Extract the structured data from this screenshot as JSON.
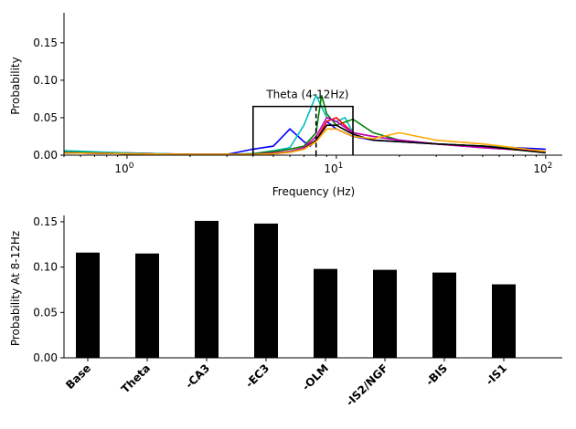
{
  "chart_data": [
    {
      "type": "line",
      "xlabel": "Frequency (Hz)",
      "ylabel": "Probability",
      "xscale": "log",
      "xlim": [
        0.5,
        120
      ],
      "ylim": [
        0,
        0.19
      ],
      "xtick_labels": [
        "10^0",
        "10^1",
        "10^2"
      ],
      "ytick_labels": [
        "0.00",
        "0.05",
        "0.10",
        "0.15"
      ],
      "annotation": {
        "text": "Theta (4-12Hz)",
        "band_hz": [
          4,
          12
        ],
        "box_top": 0.065,
        "dashed_line_hz": 8
      },
      "series": [
        {
          "color": "#0000ff",
          "x": [
            0.5,
            1,
            2,
            3,
            4,
            5,
            6,
            7,
            7.5,
            8,
            9,
            10,
            12,
            15,
            20,
            30,
            50,
            100
          ],
          "y": [
            0.005,
            0.003,
            0.001,
            0.001,
            0.008,
            0.012,
            0.035,
            0.018,
            0.012,
            0.02,
            0.045,
            0.035,
            0.025,
            0.02,
            0.018,
            0.015,
            0.012,
            0.008
          ]
        },
        {
          "color": "#00bfbf",
          "x": [
            0.5,
            1,
            2,
            3,
            4,
            5,
            6,
            7,
            8,
            9,
            10,
            11,
            12,
            15,
            20,
            30,
            50,
            100
          ],
          "y": [
            0.006,
            0.003,
            0.001,
            0.001,
            0.002,
            0.006,
            0.01,
            0.04,
            0.08,
            0.05,
            0.045,
            0.05,
            0.03,
            0.025,
            0.02,
            0.015,
            0.012,
            0.005
          ]
        },
        {
          "color": "#008000",
          "x": [
            0.5,
            1,
            2,
            3,
            4,
            5,
            6,
            7,
            8,
            8.5,
            9,
            10,
            12,
            15,
            20,
            30,
            50,
            100
          ],
          "y": [
            0.004,
            0.002,
            0.001,
            0.001,
            0.002,
            0.005,
            0.008,
            0.012,
            0.03,
            0.08,
            0.055,
            0.04,
            0.048,
            0.03,
            0.02,
            0.015,
            0.012,
            0.005
          ]
        },
        {
          "color": "#ff0000",
          "x": [
            0.5,
            1,
            2,
            3,
            4,
            5,
            6,
            7,
            8,
            9,
            10,
            12,
            15,
            20,
            30,
            50,
            100
          ],
          "y": [
            0.003,
            0.002,
            0.001,
            0.001,
            0.001,
            0.003,
            0.005,
            0.01,
            0.02,
            0.045,
            0.05,
            0.03,
            0.025,
            0.02,
            0.015,
            0.01,
            0.005
          ]
        },
        {
          "color": "#bf00bf",
          "x": [
            0.5,
            1,
            2,
            3,
            4,
            5,
            6,
            7,
            8,
            9,
            10,
            12,
            15,
            20,
            30,
            50,
            100
          ],
          "y": [
            0.003,
            0.002,
            0.001,
            0.001,
            0.001,
            0.003,
            0.005,
            0.01,
            0.025,
            0.05,
            0.045,
            0.03,
            0.025,
            0.02,
            0.015,
            0.01,
            0.005
          ]
        },
        {
          "color": "#000000",
          "x": [
            0.5,
            1,
            2,
            3,
            4,
            5,
            6,
            7,
            8,
            9,
            10,
            12,
            15,
            20,
            30,
            50,
            100
          ],
          "y": [
            0.003,
            0.002,
            0.001,
            0.001,
            0.001,
            0.002,
            0.004,
            0.008,
            0.02,
            0.04,
            0.04,
            0.028,
            0.02,
            0.018,
            0.015,
            0.012,
            0.003
          ]
        },
        {
          "color": "#ffa500",
          "x": [
            0.5,
            1,
            2,
            3,
            4,
            5,
            6,
            7,
            8,
            9,
            10,
            12,
            15,
            20,
            30,
            50,
            100
          ],
          "y": [
            0.003,
            0.002,
            0.001,
            0.001,
            0.001,
            0.002,
            0.004,
            0.008,
            0.018,
            0.035,
            0.035,
            0.025,
            0.022,
            0.03,
            0.02,
            0.015,
            0.005
          ]
        }
      ]
    },
    {
      "type": "bar",
      "ylabel": "Probability At 8-12Hz",
      "ylim": [
        0,
        0.157
      ],
      "ytick_labels": [
        "0.00",
        "0.05",
        "0.10",
        "0.15"
      ],
      "categories": [
        "Base",
        "Theta",
        "-CA3",
        "-EC3",
        "-OLM",
        "-IS2/NGF",
        "-BIS",
        "-IS1"
      ],
      "values": [
        0.116,
        0.115,
        0.151,
        0.148,
        0.098,
        0.097,
        0.094,
        0.081
      ],
      "bar_color": "#000000"
    }
  ]
}
